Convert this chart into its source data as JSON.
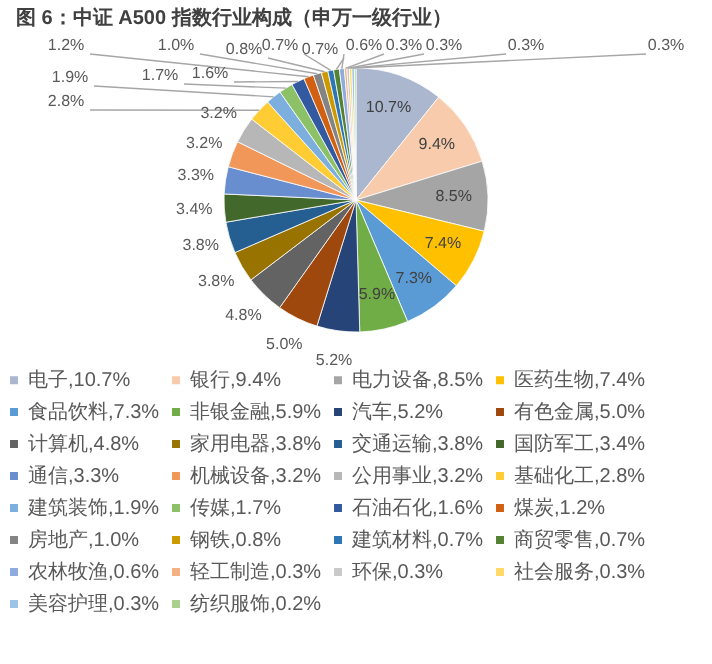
{
  "chart_data": {
    "type": "pie",
    "title": "图 6：中证 A500 指数行业构成（申万一级行业）",
    "categories": [
      "电子,10.7%",
      "银行,9.4%",
      "电力设备,8.5%",
      "医药生物,7.4%",
      "食品饮料,7.3%",
      "非银金融,5.9%",
      "汽车,5.2%",
      "有色金属,5.0%",
      "计算机,4.8%",
      "家用电器,3.8%",
      "交通运输,3.8%",
      "国防军工,3.4%",
      "通信,3.3%",
      "机械设备,3.2%",
      "公用事业,3.2%",
      "基础化工,2.8%",
      "建筑装饰,1.9%",
      "传媒,1.7%",
      "石油石化,1.6%",
      "煤炭,1.2%",
      "房地产,1.0%",
      "钢铁,0.8%",
      "建筑材料,0.7%",
      "商贸零售,0.7%",
      "农林牧渔,0.6%",
      "轻工制造,0.3%",
      "环保,0.3%",
      "社会服务,0.3%",
      "美容护理,0.3%",
      "纺织服饰,0.2%"
    ],
    "values": [
      10.7,
      9.4,
      8.5,
      7.4,
      7.3,
      5.9,
      5.2,
      5.0,
      4.8,
      3.8,
      3.8,
      3.4,
      3.3,
      3.2,
      3.2,
      2.8,
      1.9,
      1.7,
      1.6,
      1.2,
      1.0,
      0.8,
      0.7,
      0.7,
      0.6,
      0.3,
      0.3,
      0.3,
      0.3,
      0.2
    ],
    "value_labels": [
      "10.7%",
      "9.4%",
      "8.5%",
      "7.4%",
      "7.3%",
      "5.9%",
      "5.2%",
      "5.0%",
      "4.8%",
      "3.8%",
      "3.8%",
      "3.4%",
      "3.3%",
      "3.2%",
      "3.2%",
      "2.8%",
      "1.9%",
      "1.7%",
      "1.6%",
      "1.2%",
      "1.0%",
      "0.8%",
      "0.7%",
      "0.7%",
      "0.6%",
      "0.3%",
      "0.3%",
      "0.3%",
      "0.3%",
      null
    ],
    "colors": [
      "#aab7cf",
      "#f8cbad",
      "#a5a5a5",
      "#ffc000",
      "#5b9bd5",
      "#70ad47",
      "#264478",
      "#9e480e",
      "#636363",
      "#997300",
      "#255e91",
      "#43682b",
      "#698ed0",
      "#f1975a",
      "#b7b7b7",
      "#ffcd33",
      "#7cafdd",
      "#8cc168",
      "#335aa1",
      "#d26012",
      "#848484",
      "#cc9a00",
      "#2e75b6",
      "#548235",
      "#8faadc",
      "#f4b183",
      "#c9c9c9",
      "#ffd966",
      "#9dc3e6",
      "#a9d18e"
    ],
    "legend": "bottom"
  }
}
